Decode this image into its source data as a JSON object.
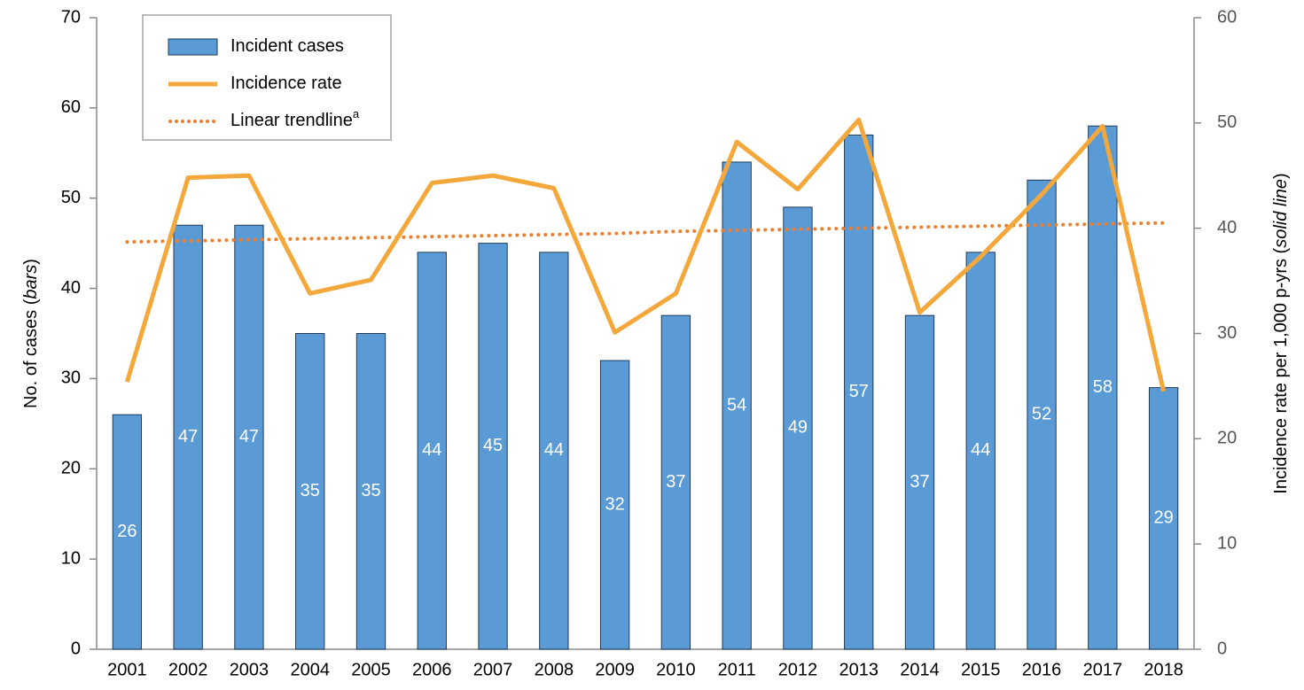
{
  "chart_data": {
    "type": "bar_line",
    "categories": [
      "2001",
      "2002",
      "2003",
      "2004",
      "2005",
      "2006",
      "2007",
      "2008",
      "2009",
      "2010",
      "2011",
      "2012",
      "2013",
      "2014",
      "2015",
      "2016",
      "2017",
      "2018"
    ],
    "series": [
      {
        "name": "Incident cases",
        "type": "bar",
        "color": "#5b9bd5",
        "values": [
          26,
          47,
          47,
          35,
          35,
          44,
          45,
          44,
          32,
          37,
          54,
          49,
          57,
          37,
          44,
          52,
          58,
          29
        ]
      },
      {
        "name": "Incidence rate",
        "type": "line",
        "axis": "y2",
        "color": "#f4a83c",
        "values": [
          25.4,
          44.8,
          45.0,
          33.8,
          35.1,
          44.3,
          45.0,
          43.8,
          30.1,
          33.8,
          48.2,
          43.7,
          50.3,
          32.0,
          37.3,
          43.2,
          49.7,
          24.5
        ]
      },
      {
        "name": "Linear trendline",
        "superscript": "a",
        "type": "dotted",
        "axis": "y2",
        "color": "#ed7d31",
        "values": [
          38.7,
          38.8,
          38.9,
          39.0,
          39.1,
          39.2,
          39.3,
          39.4,
          39.5,
          39.7,
          39.8,
          39.9,
          40.0,
          40.1,
          40.2,
          40.3,
          40.4,
          40.5
        ]
      }
    ],
    "ylabel_parts": [
      {
        "text": "No. of cases ("
      },
      {
        "text": "bars",
        "italic": true
      },
      {
        "text": ")"
      }
    ],
    "y2label_parts": [
      {
        "text": "Incidence rate per 1,000 p-yrs ("
      },
      {
        "text": "solid line",
        "italic": true
      },
      {
        "text": ")"
      }
    ],
    "ylim": [
      0,
      70
    ],
    "yticks": [
      0,
      10,
      20,
      30,
      40,
      50,
      60,
      70
    ],
    "y2lim": [
      0,
      60
    ],
    "y2ticks": [
      0,
      10,
      20,
      30,
      40,
      50,
      60
    ],
    "legend": "upper left"
  }
}
